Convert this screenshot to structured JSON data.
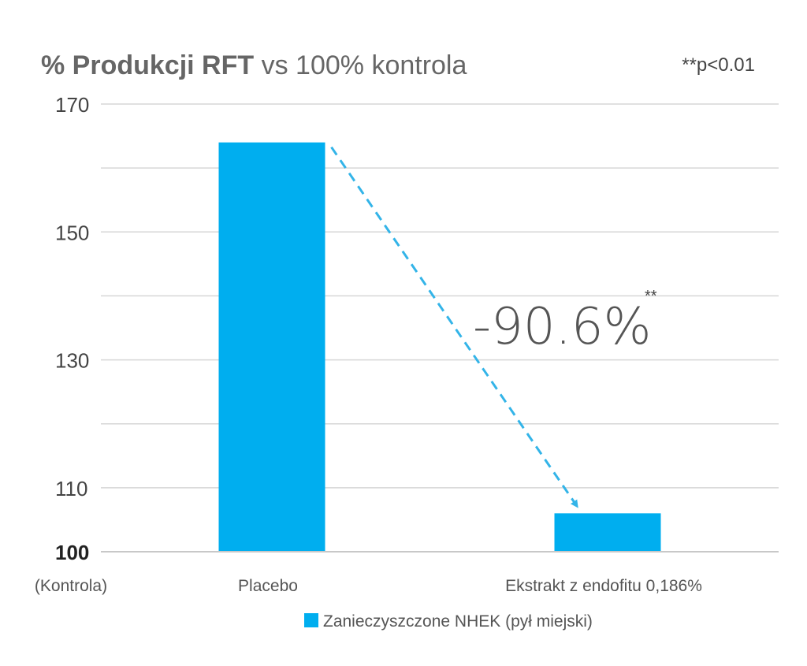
{
  "chart_data": {
    "type": "bar",
    "title_bold": "% Produkcji RFT",
    "title_rest": " vs 100% kontrola",
    "significance_note": "**p<0.01",
    "baseline_label": "(Kontrola)",
    "categories": [
      "Placebo",
      "Ekstrakt z endofitu 0,186%"
    ],
    "series": [
      {
        "name": "Zanieczyszczone NHEK (pył miejski)",
        "values": [
          164,
          106
        ]
      }
    ],
    "yticks": [
      100,
      110,
      130,
      150,
      170
    ],
    "ylim": [
      100,
      170
    ],
    "grid": true,
    "legend_position": "bottom-center",
    "annotation": {
      "text": "-90.6%",
      "superscript": "**"
    },
    "colors": {
      "bar": "#00aeef",
      "arrow": "#33b4e8",
      "grid": "#d6d6d6",
      "axis": "#c8c8c8"
    }
  }
}
